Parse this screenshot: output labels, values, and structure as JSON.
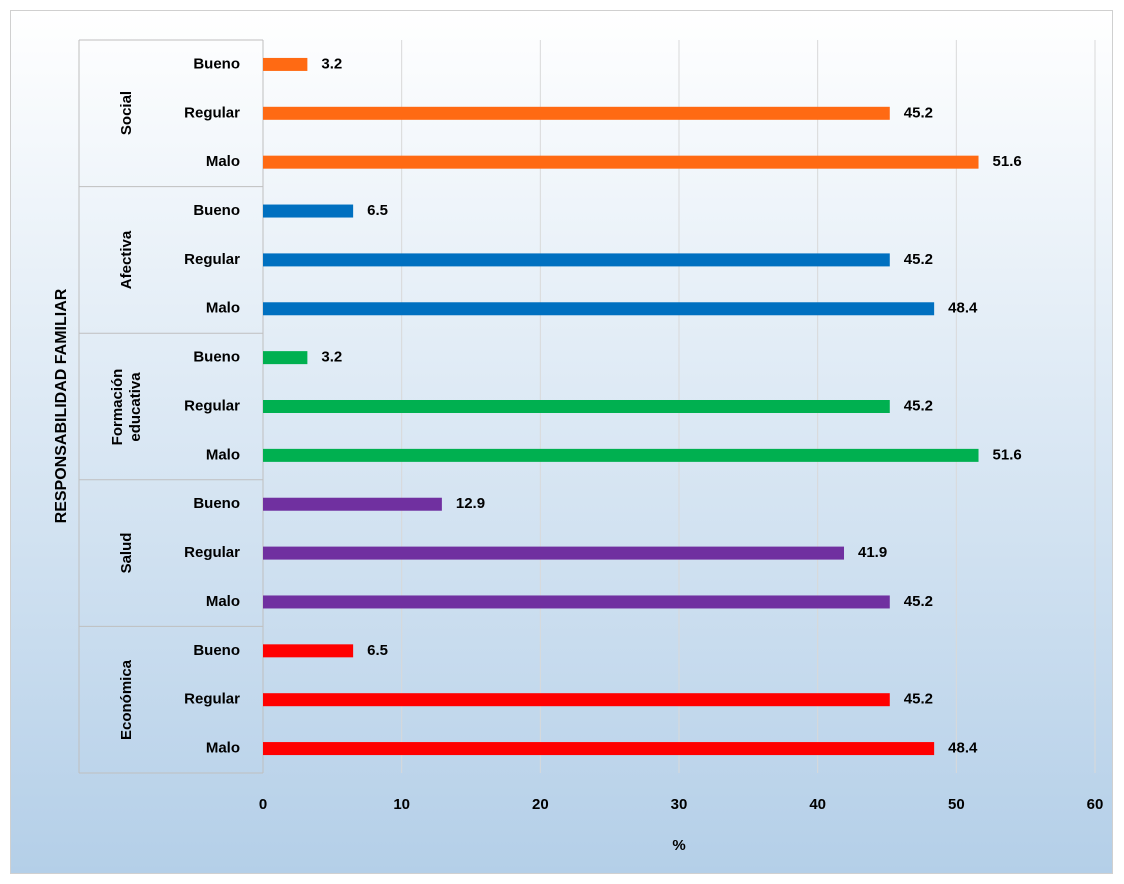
{
  "chart_data": {
    "type": "bar",
    "orientation": "horizontal",
    "y_title": "RESPONSABILIDAD FAMILIAR",
    "x_title": "%",
    "xlim": [
      0,
      60
    ],
    "xticks": [
      0,
      10,
      20,
      30,
      40,
      50,
      60
    ],
    "grid": true,
    "groups": [
      {
        "name": "Social",
        "color": "#ff6a13",
        "categories": [
          "Bueno",
          "Regular",
          "Malo"
        ],
        "values": [
          3.2,
          45.2,
          51.6
        ]
      },
      {
        "name": "Afectiva",
        "color": "#0070c0",
        "categories": [
          "Bueno",
          "Regular",
          "Malo"
        ],
        "values": [
          6.5,
          45.2,
          48.4
        ]
      },
      {
        "name": "Formación educativa",
        "color": "#00b050",
        "categories": [
          "Bueno",
          "Regular",
          "Malo"
        ],
        "values": [
          3.2,
          45.2,
          51.6
        ]
      },
      {
        "name": "Salud",
        "color": "#7030a0",
        "categories": [
          "Bueno",
          "Regular",
          "Malo"
        ],
        "values": [
          12.9,
          41.9,
          45.2
        ]
      },
      {
        "name": "Económica",
        "color": "#ff0000",
        "categories": [
          "Bueno",
          "Regular",
          "Malo"
        ],
        "values": [
          6.5,
          45.2,
          48.4
        ]
      }
    ]
  }
}
